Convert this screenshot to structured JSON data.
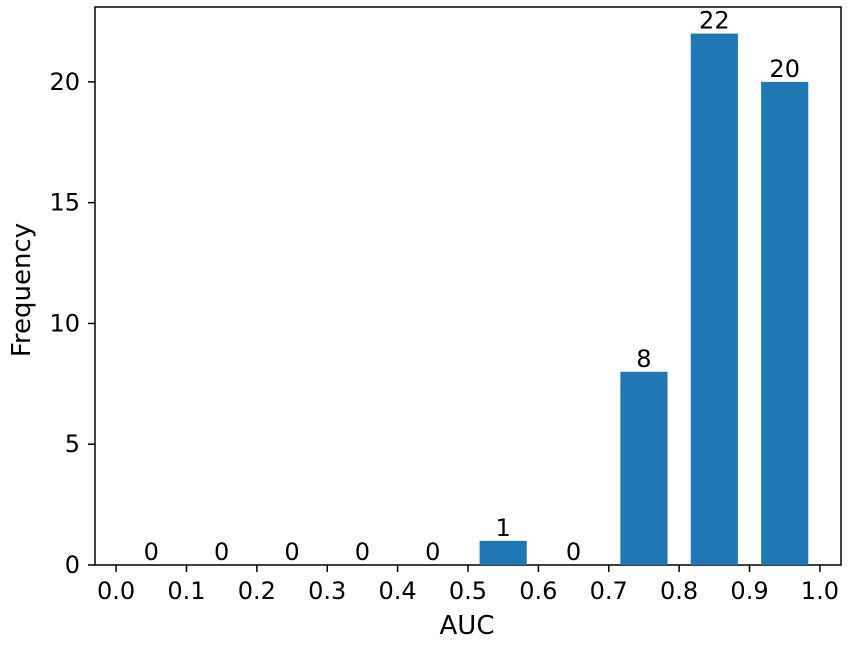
{
  "chart_data": {
    "type": "bar",
    "title": "",
    "xlabel": "AUC",
    "ylabel": "Frequency",
    "bins": [
      {
        "start": 0.0,
        "end": 0.1,
        "value": 0
      },
      {
        "start": 0.1,
        "end": 0.2,
        "value": 0
      },
      {
        "start": 0.2,
        "end": 0.3,
        "value": 0
      },
      {
        "start": 0.3,
        "end": 0.4,
        "value": 0
      },
      {
        "start": 0.4,
        "end": 0.5,
        "value": 0
      },
      {
        "start": 0.5,
        "end": 0.6,
        "value": 1
      },
      {
        "start": 0.6,
        "end": 0.7,
        "value": 0
      },
      {
        "start": 0.7,
        "end": 0.8,
        "value": 8
      },
      {
        "start": 0.8,
        "end": 0.9,
        "value": 22
      },
      {
        "start": 0.9,
        "end": 1.0,
        "value": 20
      }
    ],
    "xticks": [
      "0.0",
      "0.1",
      "0.2",
      "0.3",
      "0.4",
      "0.5",
      "0.6",
      "0.7",
      "0.8",
      "0.9",
      "1.0"
    ],
    "yticks": [
      "0",
      "5",
      "10",
      "15",
      "20"
    ],
    "xlim": [
      -0.03,
      1.03
    ],
    "ylim": [
      0,
      23.1
    ],
    "bar_color": "#1f77b4",
    "grid": false,
    "legend": false
  }
}
